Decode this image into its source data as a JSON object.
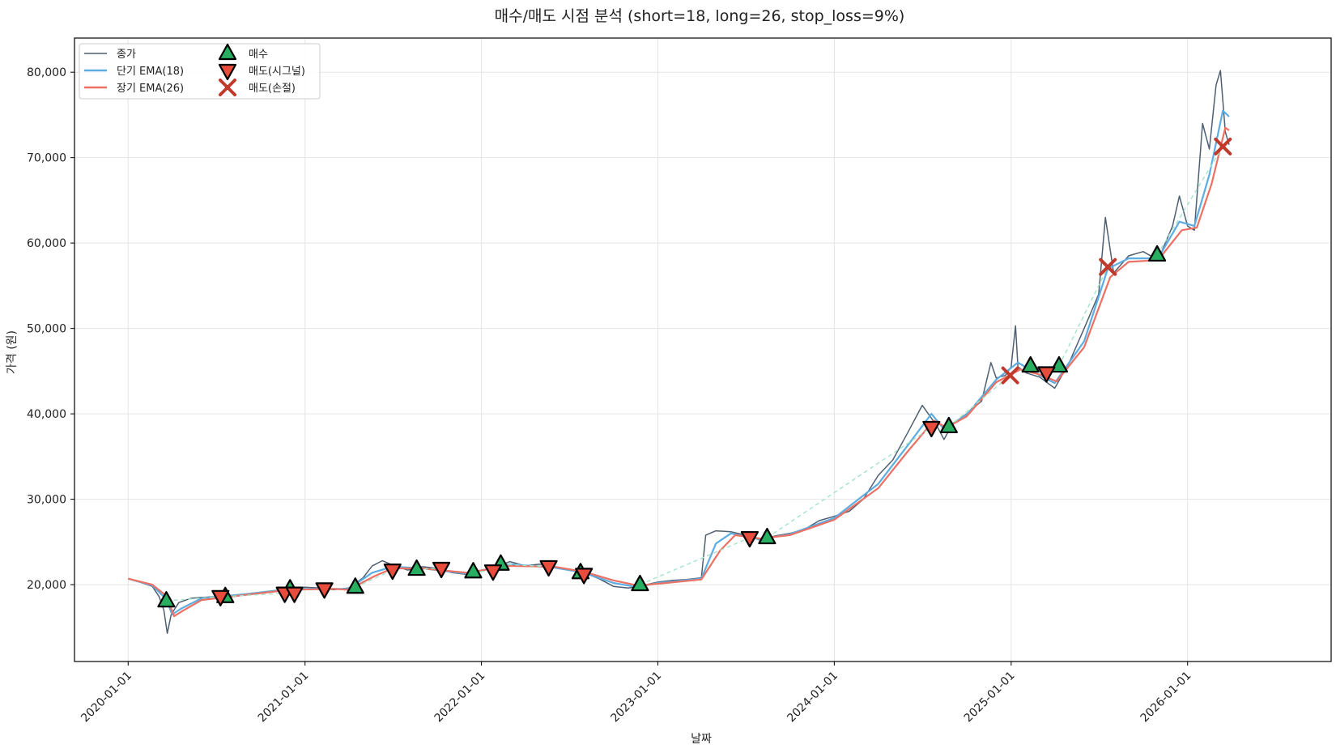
{
  "chart_data": {
    "type": "line",
    "title": "매수/매도 시점 분석 (short=18, long=26, stop_loss=9%)",
    "xlabel": "날짜",
    "ylabel": "가격 (원)",
    "xlim": [
      "2019-09-12",
      "2026-10-25"
    ],
    "ylim": [
      11000,
      84000
    ],
    "grid": true,
    "legend_position": "top-left",
    "x_ticks": [
      "2020-01-01",
      "2021-01-01",
      "2022-01-01",
      "2023-01-01",
      "2024-01-01",
      "2025-01-01",
      "2026-01-01"
    ],
    "y_ticks": [
      20000,
      30000,
      40000,
      50000,
      60000,
      70000,
      80000
    ],
    "y_tick_labels": [
      "20,000",
      "30,000",
      "40,000",
      "50,000",
      "60,000",
      "70,000",
      "80,000"
    ],
    "colors": {
      "close": "#4f5f72",
      "ema_short": "#5dade2",
      "ema_long": "#ec7063",
      "buy": "#27ae60",
      "sell_signal": "#e74c3c",
      "sell_stoploss": "#c0392b",
      "trade_line": "#a3e4c9"
    },
    "series": [
      {
        "name": "종가",
        "key": "close",
        "points": [
          [
            "2020-01-01",
            20700
          ],
          [
            "2020-01-25",
            20300
          ],
          [
            "2020-02-20",
            19800
          ],
          [
            "2020-03-05",
            18600
          ],
          [
            "2020-03-15",
            17000
          ],
          [
            "2020-03-22",
            14300
          ],
          [
            "2020-03-30",
            16500
          ],
          [
            "2020-04-15",
            17900
          ],
          [
            "2020-05-10",
            18400
          ],
          [
            "2020-06-01",
            18500
          ],
          [
            "2020-07-01",
            18600
          ],
          [
            "2020-08-01",
            18700
          ],
          [
            "2020-09-01",
            18900
          ],
          [
            "2020-10-01",
            19100
          ],
          [
            "2020-11-01",
            19200
          ],
          [
            "2020-12-01",
            19600
          ],
          [
            "2021-01-01",
            19700
          ],
          [
            "2021-02-01",
            19600
          ],
          [
            "2021-03-01",
            19400
          ],
          [
            "2021-04-01",
            19600
          ],
          [
            "2021-05-01",
            20800
          ],
          [
            "2021-05-20",
            22200
          ],
          [
            "2021-06-10",
            22800
          ],
          [
            "2021-07-01",
            22300
          ],
          [
            "2021-08-01",
            21700
          ],
          [
            "2021-09-01",
            22100
          ],
          [
            "2021-10-01",
            21900
          ],
          [
            "2021-11-01",
            21400
          ],
          [
            "2021-12-01",
            21200
          ],
          [
            "2022-01-01",
            21600
          ],
          [
            "2022-02-01",
            22100
          ],
          [
            "2022-03-01",
            22700
          ],
          [
            "2022-04-01",
            22200
          ],
          [
            "2022-05-01",
            22400
          ],
          [
            "2022-06-01",
            22100
          ],
          [
            "2022-07-01",
            21700
          ],
          [
            "2022-08-01",
            21400
          ],
          [
            "2022-09-01",
            20700
          ],
          [
            "2022-10-01",
            19800
          ],
          [
            "2022-11-01",
            19600
          ],
          [
            "2022-12-01",
            19900
          ],
          [
            "2023-01-01",
            20300
          ],
          [
            "2023-02-01",
            20500
          ],
          [
            "2023-03-01",
            20600
          ],
          [
            "2023-04-01",
            20800
          ],
          [
            "2023-04-10",
            25800
          ],
          [
            "2023-05-01",
            26300
          ],
          [
            "2023-06-01",
            26200
          ],
          [
            "2023-07-01",
            25800
          ],
          [
            "2023-08-01",
            25200
          ],
          [
            "2023-09-01",
            25700
          ],
          [
            "2023-10-01",
            26000
          ],
          [
            "2023-11-01",
            26500
          ],
          [
            "2023-12-01",
            27500
          ],
          [
            "2024-01-01",
            28000
          ],
          [
            "2024-02-01",
            28600
          ],
          [
            "2024-03-01",
            30000
          ],
          [
            "2024-04-01",
            32800
          ],
          [
            "2024-05-01",
            34600
          ],
          [
            "2024-06-01",
            37800
          ],
          [
            "2024-07-01",
            41000
          ],
          [
            "2024-07-20",
            39500
          ],
          [
            "2024-08-01",
            38500
          ],
          [
            "2024-08-15",
            37000
          ],
          [
            "2024-09-01",
            38800
          ],
          [
            "2024-10-01",
            40000
          ],
          [
            "2024-11-01",
            41500
          ],
          [
            "2024-11-20",
            46000
          ],
          [
            "2024-12-01",
            44200
          ],
          [
            "2024-12-20",
            44500
          ],
          [
            "2025-01-01",
            45500
          ],
          [
            "2025-01-10",
            50300
          ],
          [
            "2025-01-15",
            45500
          ],
          [
            "2025-02-01",
            44800
          ],
          [
            "2025-03-01",
            44300
          ],
          [
            "2025-04-01",
            43000
          ],
          [
            "2025-05-01",
            46000
          ],
          [
            "2025-06-01",
            50000
          ],
          [
            "2025-07-01",
            54000
          ],
          [
            "2025-07-15",
            63000
          ],
          [
            "2025-08-01",
            56500
          ],
          [
            "2025-09-01",
            58500
          ],
          [
            "2025-10-01",
            59000
          ],
          [
            "2025-11-01",
            58000
          ],
          [
            "2025-12-01",
            62000
          ],
          [
            "2025-12-15",
            65500
          ],
          [
            "2026-01-01",
            62000
          ],
          [
            "2026-01-15",
            61500
          ],
          [
            "2026-02-01",
            74000
          ],
          [
            "2026-02-15",
            71000
          ],
          [
            "2026-03-01",
            78500
          ],
          [
            "2026-03-10",
            80200
          ],
          [
            "2026-03-20",
            73000
          ],
          [
            "2026-03-28",
            71500
          ]
        ]
      },
      {
        "name": "단기 EMA(18)",
        "key": "ema_short",
        "points": [
          [
            "2020-01-01",
            20700
          ],
          [
            "2020-02-20",
            19900
          ],
          [
            "2020-03-20",
            18300
          ],
          [
            "2020-04-01",
            16500
          ],
          [
            "2020-04-20",
            17200
          ],
          [
            "2020-06-01",
            18400
          ],
          [
            "2020-09-01",
            18900
          ],
          [
            "2020-12-01",
            19500
          ],
          [
            "2021-03-01",
            19500
          ],
          [
            "2021-04-01",
            19500
          ],
          [
            "2021-05-20",
            21400
          ],
          [
            "2021-07-01",
            22100
          ],
          [
            "2021-09-01",
            21900
          ],
          [
            "2021-12-01",
            21300
          ],
          [
            "2022-03-01",
            22400
          ],
          [
            "2022-06-01",
            22000
          ],
          [
            "2022-08-01",
            21400
          ],
          [
            "2022-10-01",
            20200
          ],
          [
            "2022-11-20",
            19700
          ],
          [
            "2023-01-01",
            20200
          ],
          [
            "2023-04-01",
            20700
          ],
          [
            "2023-05-01",
            24800
          ],
          [
            "2023-06-01",
            26000
          ],
          [
            "2023-08-01",
            25300
          ],
          [
            "2023-10-01",
            25900
          ],
          [
            "2024-01-01",
            27800
          ],
          [
            "2024-04-01",
            31800
          ],
          [
            "2024-06-01",
            36300
          ],
          [
            "2024-07-20",
            40000
          ],
          [
            "2024-08-15",
            38200
          ],
          [
            "2024-10-01",
            39900
          ],
          [
            "2024-12-01",
            44000
          ],
          [
            "2025-01-15",
            46000
          ],
          [
            "2025-03-01",
            44500
          ],
          [
            "2025-04-01",
            43600
          ],
          [
            "2025-06-01",
            48500
          ],
          [
            "2025-07-20",
            57000
          ],
          [
            "2025-09-01",
            58200
          ],
          [
            "2025-11-01",
            58200
          ],
          [
            "2025-12-15",
            62500
          ],
          [
            "2026-01-15",
            62000
          ],
          [
            "2026-02-15",
            68000
          ],
          [
            "2026-03-15",
            75500
          ],
          [
            "2026-03-28",
            74800
          ]
        ]
      },
      {
        "name": "장기 EMA(26)",
        "key": "ema_long",
        "points": [
          [
            "2020-01-01",
            20700
          ],
          [
            "2020-02-20",
            20000
          ],
          [
            "2020-03-20",
            18700
          ],
          [
            "2020-04-05",
            16300
          ],
          [
            "2020-04-25",
            17000
          ],
          [
            "2020-06-01",
            18200
          ],
          [
            "2020-09-01",
            18800
          ],
          [
            "2020-12-01",
            19400
          ],
          [
            "2021-03-01",
            19500
          ],
          [
            "2021-04-01",
            19400
          ],
          [
            "2021-05-25",
            21000
          ],
          [
            "2021-07-01",
            21900
          ],
          [
            "2021-09-01",
            21900
          ],
          [
            "2021-12-01",
            21400
          ],
          [
            "2022-03-01",
            22200
          ],
          [
            "2022-06-01",
            22100
          ],
          [
            "2022-08-01",
            21500
          ],
          [
            "2022-10-01",
            20500
          ],
          [
            "2022-11-20",
            19900
          ],
          [
            "2023-01-01",
            20100
          ],
          [
            "2023-04-01",
            20600
          ],
          [
            "2023-05-10",
            24000
          ],
          [
            "2023-06-10",
            25800
          ],
          [
            "2023-08-01",
            25400
          ],
          [
            "2023-10-01",
            25800
          ],
          [
            "2024-01-01",
            27600
          ],
          [
            "2024-04-01",
            31300
          ],
          [
            "2024-06-01",
            35600
          ],
          [
            "2024-07-25",
            39200
          ],
          [
            "2024-08-20",
            38400
          ],
          [
            "2024-10-01",
            39700
          ],
          [
            "2024-12-01",
            43700
          ],
          [
            "2025-01-20",
            45200
          ],
          [
            "2025-03-01",
            44600
          ],
          [
            "2025-04-05",
            43800
          ],
          [
            "2025-06-01",
            47800
          ],
          [
            "2025-07-25",
            56000
          ],
          [
            "2025-09-01",
            57800
          ],
          [
            "2025-11-01",
            58000
          ],
          [
            "2025-12-20",
            61500
          ],
          [
            "2026-01-20",
            61800
          ],
          [
            "2026-02-20",
            67000
          ],
          [
            "2026-03-20",
            73500
          ],
          [
            "2026-03-28",
            73200
          ]
        ]
      }
    ],
    "buy_points": [
      [
        "2020-03-20",
        18100
      ],
      [
        "2020-07-20",
        18600
      ],
      [
        "2020-12-01",
        19500
      ],
      [
        "2021-04-15",
        19700
      ],
      [
        "2021-08-20",
        21800
      ],
      [
        "2021-12-15",
        21500
      ],
      [
        "2022-02-10",
        22400
      ],
      [
        "2022-07-25",
        21400
      ],
      [
        "2022-11-25",
        20000
      ],
      [
        "2023-08-15",
        25500
      ],
      [
        "2024-08-25",
        38500
      ],
      [
        "2025-02-10",
        45600
      ],
      [
        "2025-04-10",
        45600
      ],
      [
        "2025-10-30",
        58600
      ]
    ],
    "sell_signal_points": [
      [
        "2020-07-10",
        18600
      ],
      [
        "2020-11-20",
        19000
      ],
      [
        "2020-12-10",
        19000
      ],
      [
        "2021-02-10",
        19500
      ],
      [
        "2021-07-01",
        21700
      ],
      [
        "2021-10-10",
        21900
      ],
      [
        "2022-01-25",
        21600
      ],
      [
        "2022-05-20",
        22100
      ],
      [
        "2022-08-01",
        21200
      ],
      [
        "2023-07-10",
        25500
      ],
      [
        "2024-07-20",
        38400
      ],
      [
        "2025-03-15",
        44800
      ]
    ],
    "sell_stoploss_points": [
      [
        "2024-12-30",
        44500
      ],
      [
        "2025-07-20",
        57200
      ],
      [
        "2026-03-15",
        71300
      ]
    ],
    "legend": [
      {
        "label": "종가",
        "type": "line",
        "key": "close"
      },
      {
        "label": "단기 EMA(18)",
        "type": "line",
        "key": "ema_short"
      },
      {
        "label": "장기 EMA(26)",
        "type": "line",
        "key": "ema_long"
      },
      {
        "label": "매수",
        "type": "marker-up",
        "key": "buy"
      },
      {
        "label": "매도(시그널)",
        "type": "marker-down",
        "key": "sell_signal"
      },
      {
        "label": "매도(손절)",
        "type": "marker-x",
        "key": "sell_stoploss"
      }
    ]
  }
}
